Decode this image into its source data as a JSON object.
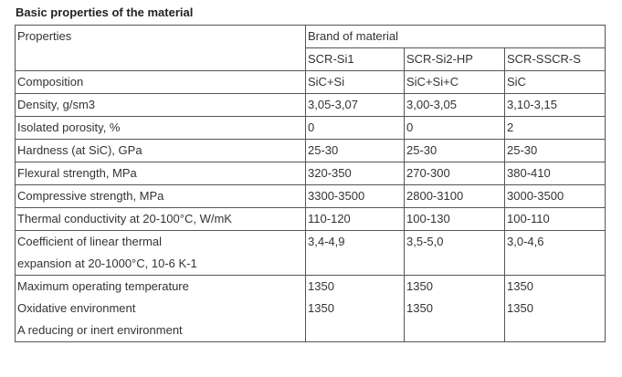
{
  "title": "Basic properties of the material",
  "table": {
    "header_properties": "Properties",
    "header_brand": "Brand of material",
    "brands": [
      "SCR-Si1",
      "SCR-Si2-HP",
      "SCR-SSCR-S"
    ],
    "rows": [
      {
        "label": "Composition",
        "values": [
          "SiC+Si",
          "SiC+Si+C",
          "SiC"
        ]
      },
      {
        "label": "Density, g/sm3",
        "values": [
          "3,05-3,07",
          "3,00-3,05",
          "3,10-3,15"
        ]
      },
      {
        "label": "Isolated porosity, %",
        "values": [
          "0",
          "0",
          "2"
        ]
      },
      {
        "label": "Hardness (at SiC), GPa",
        "values": [
          "25-30",
          "25-30",
          "25-30"
        ]
      },
      {
        "label": "Flexural strength, MPa",
        "values": [
          "320-350",
          "270-300",
          "380-410"
        ]
      },
      {
        "label": "Compressive strength, MPa",
        "values": [
          "3300-3500",
          "2800-3100",
          "3000-3500"
        ]
      },
      {
        "label": "Thermal conductivity at 20-100°C, W/mK",
        "values": [
          "110-120",
          "100-130",
          "100-110"
        ]
      }
    ],
    "cte": {
      "label_line1": "Coefficient of linear thermal",
      "label_line2": "expansion at 20-1000°C, 10-6 K-1",
      "values": [
        "3,4-4,9",
        "3,5-5,0",
        "3,0-4,6"
      ]
    },
    "last": {
      "label_line1": "Maximum operating temperature",
      "label_line2": "Oxidative environment",
      "label_line3": "A reducing or inert environment",
      "values_line1": [
        "1350",
        "1350",
        "1350"
      ],
      "values_line2": [
        "1350",
        "1350",
        "1350"
      ]
    }
  }
}
